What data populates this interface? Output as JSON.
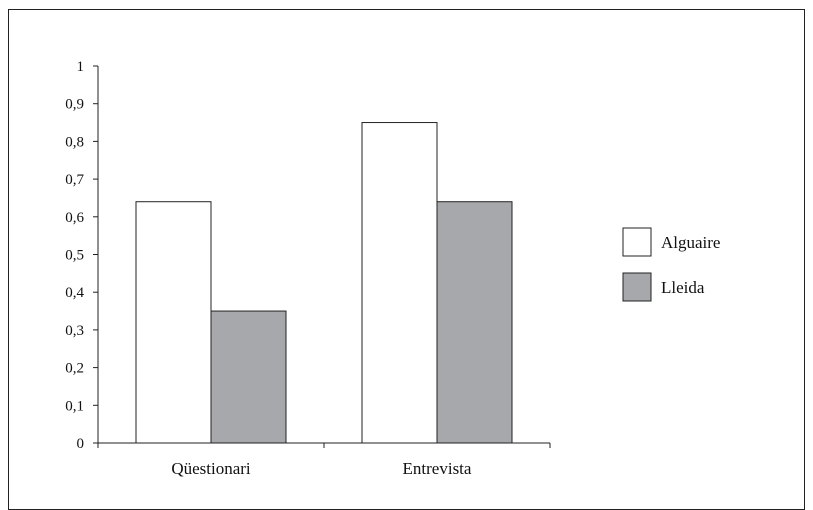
{
  "chart_data": {
    "type": "bar",
    "categories": [
      "Qüestionari",
      "Entrevista"
    ],
    "series": [
      {
        "name": "Alguaire",
        "values": [
          0.64,
          0.85
        ],
        "color": "#ffffff"
      },
      {
        "name": "Lleida",
        "values": [
          0.35,
          0.64
        ],
        "color": "#a7a8ab"
      }
    ],
    "ylim": [
      0,
      1
    ],
    "yticks": [
      "0",
      "0,1",
      "0,2",
      "0,3",
      "0,4",
      "0,5",
      "0,6",
      "0,7",
      "0,8",
      "0,9",
      "1"
    ],
    "grid": false,
    "legend": "right"
  }
}
